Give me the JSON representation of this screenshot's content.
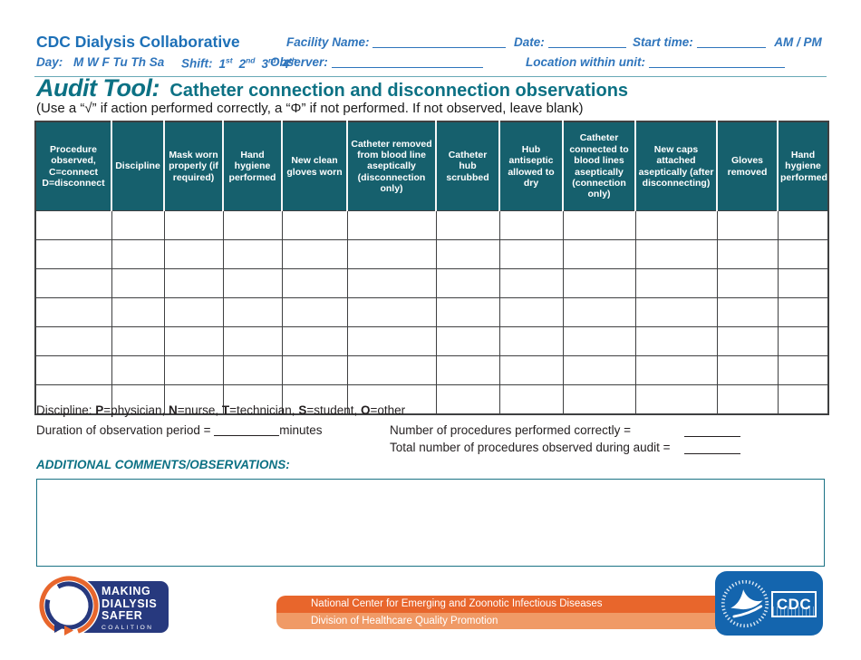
{
  "header": {
    "org": "CDC Dialysis Collaborative",
    "facility_label": "Facility Name:",
    "date_label": "Date:",
    "start_label": "Start time:",
    "ampm": "AM / PM",
    "day_label": "Day:",
    "days": "M W F Tu Th Sa",
    "shift_label": "Shift:",
    "shifts": [
      {
        "n": "1",
        "s": "st"
      },
      {
        "n": "2",
        "s": "nd"
      },
      {
        "n": "3",
        "s": "rd"
      },
      {
        "n": "4",
        "s": "th"
      }
    ],
    "observer_label": "Observer:",
    "location_label": "Location within unit:"
  },
  "title": {
    "main": "Audit Tool:",
    "subtitle": "Catheter connection and disconnection observations",
    "instructions": "(Use a “√” if action performed correctly, a “Φ” if not performed. If not observed, leave blank)"
  },
  "table": {
    "row_count": 7,
    "columns": [
      "Procedure observed, C=connect D=disconnect",
      "Discipline",
      "Mask worn properly (if required)",
      "Hand hygiene performed",
      "New clean gloves worn",
      "Catheter removed from blood line aseptically (disconnection only)",
      "Catheter hub scrubbed",
      "Hub antiseptic allowed to dry",
      "Catheter connected to blood lines aseptically (connection only)",
      "New caps attached aseptically (after disconnecting)",
      "Gloves removed",
      "Hand hygiene performed"
    ]
  },
  "footnotes": {
    "discipline_prefix": "Discipline: ",
    "legend": [
      {
        "key": "P",
        "rest": "=physician, "
      },
      {
        "key": "N",
        "rest": "=nurse, "
      },
      {
        "key": "T",
        "rest": "=technician, "
      },
      {
        "key": "S",
        "rest": "=student, "
      },
      {
        "key": "O",
        "rest": "=other"
      }
    ],
    "duration_label": "Duration of observation period = ",
    "duration_unit": "minutes",
    "correct_label": "Number of procedures performed correctly = ",
    "total_label": "Total number of procedures observed during audit = ",
    "comments_label": "ADDITIONAL COMMENTS/OBSERVATIONS:"
  },
  "footer": {
    "coalition": {
      "line1": "MAKING",
      "line2": "DIALYSIS",
      "line3": "SAFER",
      "sub": "COALITION"
    },
    "banner": {
      "line1": "National Center for Emerging and Zoonotic Infectious Diseases",
      "line2": "Division of Healthcare Quality Promotion"
    },
    "cdc_label": "CDC"
  },
  "colors": {
    "brand_blue": "#1d70b7",
    "form_blue": "#2f75bc",
    "accent_teal": "#0c7184",
    "table_header_teal": "#16606d",
    "orange_dark": "#e8662c",
    "orange_light": "#f09a66",
    "navy": "#27397e",
    "cdc_blue": "#1465ae"
  }
}
